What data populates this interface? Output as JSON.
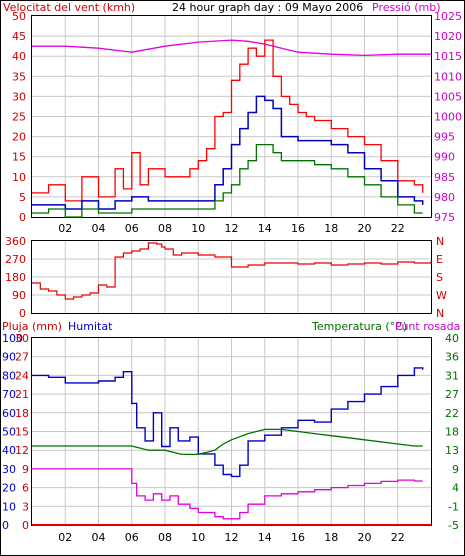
{
  "colors": {
    "wind": "#e60000",
    "wind_gust": "#ff0000",
    "wind_avg": "#0000c0",
    "wind_min": "#007000",
    "pressure": "#e000e0",
    "humidity": "#0000cc",
    "temperature": "#007000",
    "dewpoint": "#e000e0",
    "rain": "#e00000",
    "grid": "#c8c8c8",
    "axis_left_top": "#cc0000",
    "axis_right_top": "#cc00cc",
    "axis_bottom_left": "#0000cc",
    "axis_bottom_right": "#007000"
  },
  "chart_data": [
    {
      "type": "line",
      "title": "24 hour graph day : 09 Mayo 2006",
      "ylabel_left": "Velocitat del vent (kmh)",
      "ylabel_right": "Pressió (mb)",
      "x_ticks": [
        "02",
        "04",
        "06",
        "08",
        "10",
        "12",
        "14",
        "16",
        "18",
        "20",
        "22"
      ],
      "x_range": [
        0,
        24
      ],
      "ylim_left": [
        0,
        50
      ],
      "ylim_right": [
        975,
        1025
      ],
      "y_ticks_left": [
        0,
        5,
        10,
        15,
        20,
        25,
        30,
        35,
        40,
        45,
        50
      ],
      "y_ticks_right": [
        975,
        980,
        985,
        990,
        995,
        1000,
        1005,
        1010,
        1015,
        1020,
        1025
      ],
      "grid": true,
      "series": [
        {
          "axis": "right",
          "x": [
            0,
            2,
            4,
            6,
            8,
            10,
            12,
            13,
            14,
            16,
            18,
            20,
            22,
            24
          ],
          "values": [
            1017.5,
            1017.5,
            1017.0,
            1016.0,
            1017.5,
            1018.5,
            1019,
            1018.7,
            1018,
            1016,
            1015.5,
            1015.2,
            1015.5,
            1015.5
          ]
        },
        {
          "axis": "left",
          "x": [
            0,
            1,
            2,
            3,
            4,
            5,
            5.5,
            6,
            6.5,
            7,
            8,
            9,
            9.5,
            10,
            10.5,
            11,
            11.5,
            12,
            12.5,
            13,
            13.5,
            14,
            14.5,
            15,
            15.5,
            16,
            16.5,
            17,
            18,
            19,
            20,
            21,
            22,
            23,
            23.5
          ],
          "values": [
            6,
            8,
            4,
            10,
            5,
            12,
            7,
            16,
            8,
            12,
            10,
            10,
            12,
            14,
            17,
            25,
            26,
            34,
            38,
            42,
            40,
            44,
            35,
            30,
            28,
            26,
            25,
            24,
            22,
            20,
            18,
            14,
            9,
            8,
            6
          ]
        },
        {
          "axis": "left",
          "x": [
            0,
            1,
            2,
            3,
            4,
            5,
            6,
            7,
            8,
            9,
            10,
            11,
            11.5,
            12,
            12.5,
            13,
            13.5,
            14,
            14.5,
            15,
            16,
            17,
            18,
            19,
            20,
            21,
            22,
            23,
            23.5
          ],
          "values": [
            3,
            3,
            2,
            4,
            2,
            4,
            5,
            4,
            4,
            4,
            4,
            8,
            12,
            18,
            22,
            26,
            30,
            29,
            27,
            20,
            19,
            19,
            18,
            16,
            12,
            9,
            5,
            4,
            3
          ]
        },
        {
          "axis": "left",
          "x": [
            0,
            1,
            2,
            3,
            4,
            5,
            6,
            7,
            8,
            9,
            10,
            11,
            11.5,
            12,
            12.5,
            13,
            13.5,
            14,
            14.5,
            15,
            16,
            17,
            18,
            19,
            20,
            21,
            22,
            23,
            23.5
          ],
          "values": [
            1,
            2,
            0,
            2,
            1,
            1,
            2,
            2,
            2,
            2,
            2,
            4,
            6,
            8,
            12,
            14,
            18,
            18,
            16,
            14,
            14,
            13,
            12,
            10,
            8,
            5,
            3,
            1,
            1
          ]
        }
      ]
    },
    {
      "type": "line",
      "x_range": [
        0,
        24
      ],
      "ylim": [
        0,
        360
      ],
      "y_ticks_left": [
        0,
        90,
        180,
        270,
        360
      ],
      "y_ticks_right": [
        "N",
        "W",
        "S",
        "E",
        "N"
      ],
      "grid": true,
      "series": [
        {
          "x": [
            0,
            0.5,
            1,
            1.5,
            2,
            2.5,
            3,
            3.5,
            4,
            4.5,
            4.8,
            5,
            5.5,
            6,
            6.5,
            7,
            7.5,
            7.8,
            8,
            8.5,
            9,
            10,
            11,
            12,
            13,
            14,
            15,
            16,
            17,
            18,
            19,
            20,
            21,
            22,
            23,
            24
          ],
          "values": [
            150,
            120,
            110,
            90,
            70,
            80,
            90,
            100,
            140,
            130,
            130,
            280,
            300,
            310,
            320,
            350,
            345,
            330,
            320,
            290,
            300,
            290,
            280,
            230,
            240,
            250,
            250,
            245,
            250,
            240,
            245,
            250,
            245,
            255,
            250,
            260
          ]
        }
      ]
    },
    {
      "type": "line",
      "labels": {
        "left_a": "Pluja (mm)",
        "left_b": "Humitat",
        "right_a": "Temperatura (°C)",
        "right_b": "Punt rosada"
      },
      "x_ticks": [
        "02",
        "04",
        "06",
        "08",
        "10",
        "12",
        "14",
        "16",
        "18",
        "20",
        "22"
      ],
      "x_range": [
        0,
        24
      ],
      "ylim_humidity": [
        0,
        100
      ],
      "ylim_rain": [
        0,
        30
      ],
      "ylim_temp": [
        -5,
        40
      ],
      "y_ticks_humidity": [
        0,
        10,
        20,
        30,
        40,
        50,
        60,
        70,
        80,
        90,
        100
      ],
      "y_ticks_rain": [
        0,
        3,
        6,
        9,
        12,
        15,
        18,
        21,
        24,
        27,
        30
      ],
      "y_ticks_temp": [
        -5,
        -1,
        4,
        9,
        13,
        18,
        22,
        27,
        31,
        36,
        40
      ],
      "grid": true,
      "series": [
        {
          "x": [
            0,
            1,
            2,
            3,
            4,
            5,
            5.5,
            6,
            6.3,
            6.8,
            7.3,
            7.8,
            8.3,
            8.8,
            9.5,
            10,
            11,
            11.5,
            12,
            12.5,
            13,
            14,
            15,
            16,
            17,
            18,
            19,
            20,
            21,
            22,
            23,
            23.5
          ],
          "values": [
            80,
            79,
            76,
            76,
            77,
            79,
            82,
            65,
            52,
            45,
            60,
            42,
            52,
            45,
            47,
            38,
            32,
            27,
            26,
            32,
            45,
            48,
            52,
            56,
            55,
            62,
            66,
            70,
            74,
            80,
            84,
            83
          ]
        },
        {
          "x": [
            0,
            2,
            4,
            6,
            7,
            8,
            9,
            10,
            11,
            11.5,
            12,
            13,
            14,
            15,
            16,
            17,
            18,
            19,
            20,
            21,
            22,
            23,
            23.5
          ],
          "values": [
            14,
            14,
            14,
            14,
            13,
            13,
            12,
            12,
            13,
            14.5,
            15.5,
            17,
            18,
            18,
            17.5,
            17,
            16.5,
            16,
            15.5,
            15,
            14.5,
            14,
            14
          ]
        },
        {
          "x": [
            0,
            1,
            2,
            3,
            4,
            5,
            5.5,
            6,
            6.3,
            6.8,
            7.3,
            7.8,
            8.3,
            8.8,
            9.5,
            10,
            11,
            11.5,
            12,
            12.5,
            13,
            14,
            15,
            16,
            17,
            18,
            19,
            20,
            21,
            22,
            23,
            23.5
          ],
          "values": [
            8.5,
            8.5,
            8.5,
            8.5,
            8.5,
            8.5,
            8.5,
            5,
            2,
            1,
            2.5,
            1,
            2,
            0,
            -1,
            -2,
            -3,
            -3.5,
            -3.5,
            -2,
            0,
            2,
            2.5,
            3,
            3.5,
            4,
            4.5,
            5,
            5.5,
            5.8,
            5.6,
            5.6
          ]
        },
        {
          "x": [
            0,
            24
          ],
          "values": [
            0,
            0
          ]
        }
      ]
    }
  ]
}
